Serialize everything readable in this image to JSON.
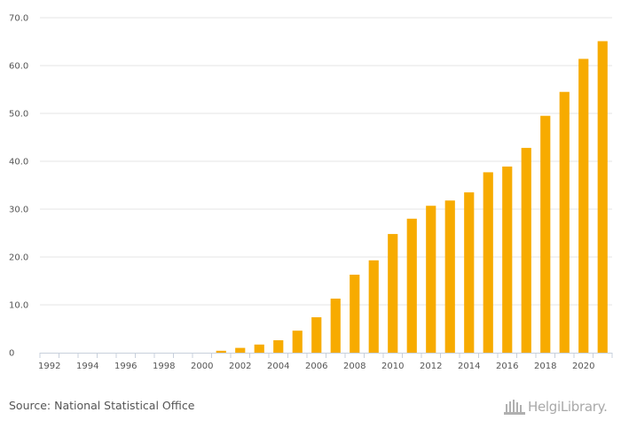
{
  "chart_data": {
    "type": "bar",
    "title": "",
    "xlabel": "",
    "ylabel": "",
    "ylim": [
      0,
      70
    ],
    "yticks": [
      0,
      10,
      20,
      30,
      40,
      50,
      60,
      70
    ],
    "ytick_labels": [
      "0",
      "10.0",
      "20.0",
      "30.0",
      "40.0",
      "50.0",
      "60.0",
      "70.0"
    ],
    "xtick_labels": [
      "1992",
      "1994",
      "1996",
      "1998",
      "2000",
      "2002",
      "2004",
      "2006",
      "2008",
      "2010",
      "2012",
      "2014",
      "2016",
      "2018",
      "2020"
    ],
    "categories": [
      "1992",
      "1993",
      "1994",
      "1995",
      "1996",
      "1997",
      "1998",
      "1999",
      "2000",
      "2001",
      "2002",
      "2003",
      "2004",
      "2005",
      "2006",
      "2007",
      "2008",
      "2009",
      "2010",
      "2011",
      "2012",
      "2013",
      "2014",
      "2015",
      "2016",
      "2017",
      "2018",
      "2019",
      "2020",
      "2021"
    ],
    "values": [
      0,
      0,
      0,
      0,
      0,
      0,
      0,
      0,
      0,
      0.4,
      1.0,
      1.7,
      2.6,
      4.6,
      7.4,
      11.3,
      16.3,
      19.3,
      24.8,
      28.0,
      30.7,
      31.8,
      33.5,
      37.7,
      38.9,
      42.8,
      49.5,
      54.5,
      61.4,
      65.1
    ],
    "bar_color": "#f7ab00",
    "grid": true
  },
  "footer": {
    "source": "Source: National Statistical Office",
    "logo_text": "HelgiLibrary."
  }
}
